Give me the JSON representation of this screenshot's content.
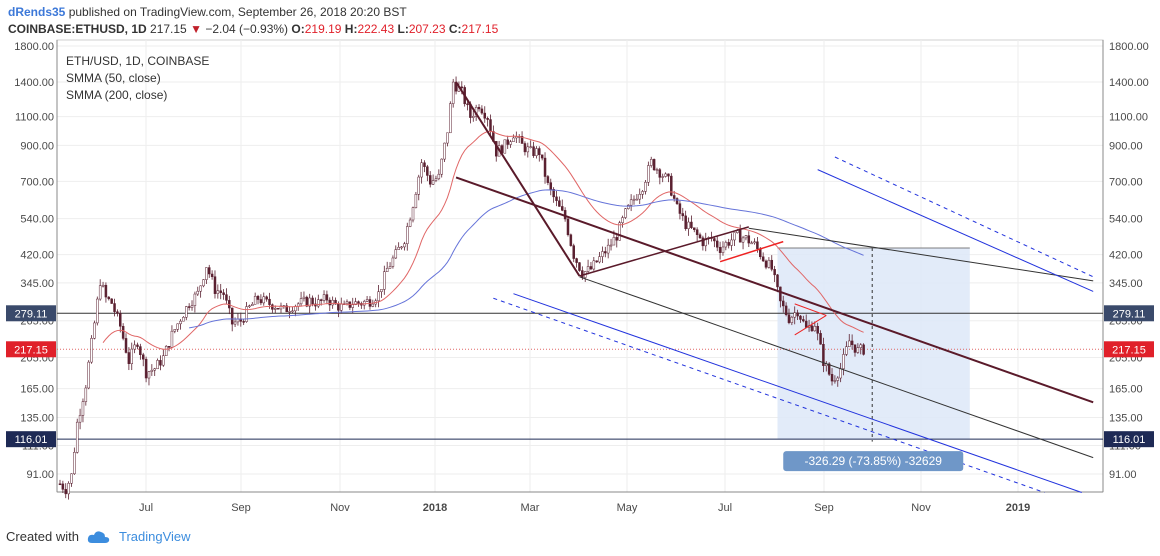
{
  "header": {
    "user": "dRends35",
    "published": "published on TradingView.com, September 26, 2018 20:20 BST",
    "symbol": "COINBASE:ETHUSD, 1D",
    "last": "217.15",
    "change": "−2.04 (−0.93%)",
    "o_label": "O:",
    "o_value": "219.19",
    "h_label": "H:",
    "h_value": "222.43",
    "l_label": "L:",
    "l_value": "207.23",
    "c_label": "C:",
    "c_value": "217.15"
  },
  "legend": {
    "title": "ETH/USD, 1D, COINBASE",
    "smma50": "SMMA (50, close)",
    "smma200": "SMMA (200, close)"
  },
  "footer": {
    "created_with": "Created with",
    "brand": "TradingView"
  },
  "measure_label": "-326.29 (-73.85%) -32629",
  "chart_data": {
    "type": "candlestick",
    "y_scale": "log",
    "ylim": [
      80,
      1800
    ],
    "y_ticks": [
      "1800.00",
      "1400.00",
      "1100.00",
      "900.00",
      "700.00",
      "540.00",
      "420.00",
      "345.00",
      "265.00",
      "205.00",
      "165.00",
      "135.00",
      "111.00",
      "91.00"
    ],
    "x_ticks": [
      "Jul",
      "Sep",
      "Nov",
      "2018",
      "Mar",
      "May",
      "Jul",
      "Sep",
      "Nov",
      "2019"
    ],
    "price_labels": [
      {
        "value": "279.11",
        "color": "#3a4a6b"
      },
      {
        "value": "217.15",
        "color": "#e0202a"
      },
      {
        "value": "116.01",
        "color": "#1e2a55"
      }
    ],
    "colors": {
      "up": "#ffffff",
      "down": "#5a2030",
      "wick": "#5a2030",
      "smma50": "#e06666",
      "smma200": "#6674d9",
      "channel_blue": "#2233dd",
      "trend_dark": "#5a1a2a",
      "flag_red": "#ee2222",
      "measure_fill": "#dde8f8",
      "measure_label": "#6f97c8"
    },
    "price_path": [
      [
        0,
        85
      ],
      [
        2,
        82
      ],
      [
        4,
        90
      ],
      [
        6,
        130
      ],
      [
        9,
        170
      ],
      [
        12,
        260
      ],
      [
        14,
        350
      ],
      [
        16,
        310
      ],
      [
        18,
        300
      ],
      [
        21,
        255
      ],
      [
        24,
        200
      ],
      [
        27,
        230
      ],
      [
        30,
        185
      ],
      [
        33,
        190
      ],
      [
        36,
        205
      ],
      [
        39,
        240
      ],
      [
        42,
        270
      ],
      [
        45,
        300
      ],
      [
        48,
        320
      ],
      [
        51,
        390
      ],
      [
        54,
        330
      ],
      [
        57,
        320
      ],
      [
        60,
        260
      ],
      [
        63,
        265
      ],
      [
        66,
        290
      ],
      [
        69,
        310
      ],
      [
        72,
        300
      ],
      [
        75,
        295
      ],
      [
        78,
        285
      ],
      [
        81,
        295
      ],
      [
        84,
        300
      ],
      [
        87,
        305
      ],
      [
        90,
        300
      ],
      [
        93,
        310
      ],
      [
        96,
        295
      ],
      [
        99,
        290
      ],
      [
        102,
        300
      ],
      [
        105,
        300
      ],
      [
        108,
        305
      ],
      [
        111,
        320
      ],
      [
        114,
        380
      ],
      [
        117,
        420
      ],
      [
        120,
        470
      ],
      [
        123,
        600
      ],
      [
        126,
        800
      ],
      [
        129,
        700
      ],
      [
        132,
        720
      ],
      [
        135,
        1000
      ],
      [
        137,
        1400
      ],
      [
        140,
        1300
      ],
      [
        143,
        1100
      ],
      [
        146,
        1200
      ],
      [
        149,
        1100
      ],
      [
        152,
        860
      ],
      [
        155,
        900
      ],
      [
        158,
        980
      ],
      [
        161,
        900
      ],
      [
        164,
        860
      ],
      [
        167,
        860
      ],
      [
        170,
        680
      ],
      [
        173,
        600
      ],
      [
        176,
        540
      ],
      [
        179,
        420
      ],
      [
        182,
        370
      ],
      [
        185,
        380
      ],
      [
        188,
        410
      ],
      [
        191,
        440
      ],
      [
        194,
        480
      ],
      [
        197,
        560
      ],
      [
        200,
        620
      ],
      [
        203,
        680
      ],
      [
        206,
        800
      ],
      [
        209,
        750
      ],
      [
        212,
        700
      ],
      [
        215,
        580
      ],
      [
        218,
        520
      ],
      [
        221,
        490
      ],
      [
        224,
        460
      ],
      [
        227,
        470
      ],
      [
        230,
        440
      ],
      [
        233,
        460
      ],
      [
        236,
        480
      ],
      [
        239,
        470
      ],
      [
        242,
        450
      ],
      [
        245,
        410
      ],
      [
        248,
        380
      ],
      [
        251,
        300
      ],
      [
        254,
        270
      ],
      [
        257,
        285
      ],
      [
        260,
        250
      ],
      [
        263,
        260
      ],
      [
        266,
        200
      ],
      [
        269,
        175
      ],
      [
        272,
        190
      ],
      [
        275,
        230
      ],
      [
        278,
        215
      ],
      [
        280,
        217
      ]
    ]
  }
}
